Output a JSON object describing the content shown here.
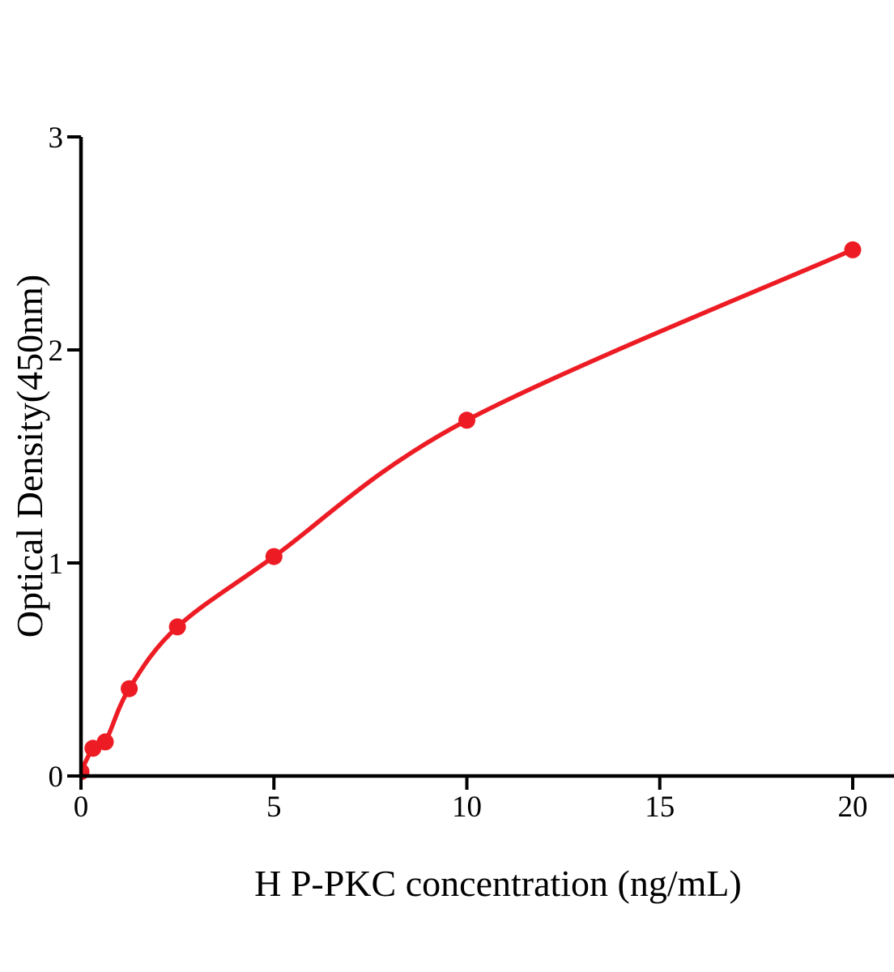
{
  "chart_data": {
    "type": "scatter",
    "xlabel": "H P-PKC concentration (ng/mL)",
    "ylabel": "Optical Density(450nm)",
    "xlim": [
      0,
      20
    ],
    "ylim": [
      0,
      3
    ],
    "x_ticks": [
      0,
      5,
      10,
      15,
      20
    ],
    "y_ticks": [
      0,
      1,
      2,
      3
    ],
    "grid": false,
    "legend_position": "none",
    "series_color": "#ED1C24",
    "axis_color": "#000000",
    "points": [
      {
        "x": 0,
        "y": 0.02
      },
      {
        "x": 0.31,
        "y": 0.13
      },
      {
        "x": 0.63,
        "y": 0.16
      },
      {
        "x": 1.25,
        "y": 0.41
      },
      {
        "x": 2.5,
        "y": 0.7
      },
      {
        "x": 5,
        "y": 1.03
      },
      {
        "x": 10,
        "y": 1.67
      },
      {
        "x": 20,
        "y": 2.47
      }
    ],
    "fit": "smooth saturating curve through all points, from origin to x=20"
  }
}
